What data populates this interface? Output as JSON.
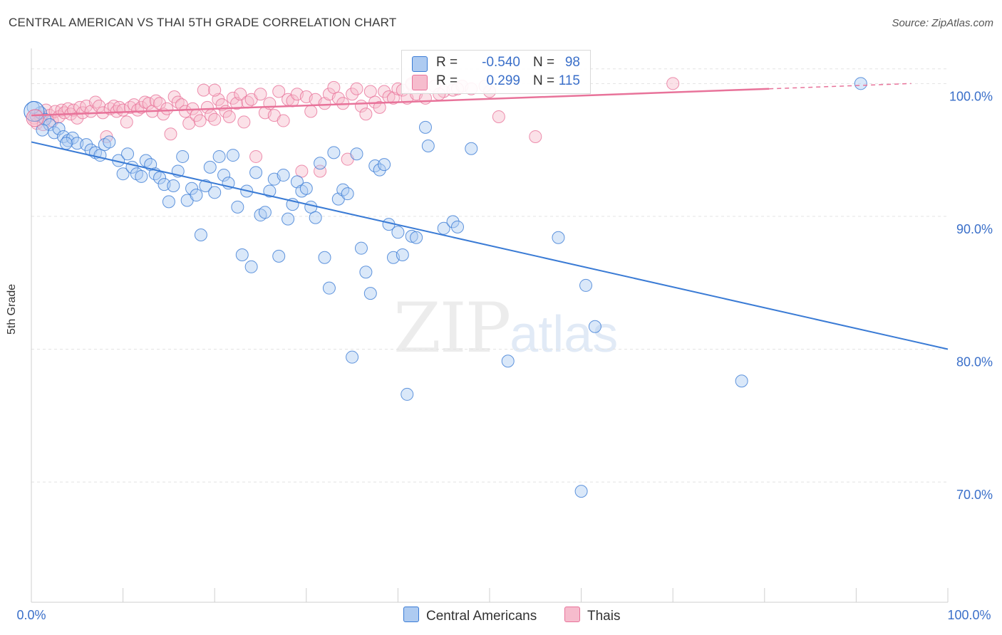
{
  "title": "CENTRAL AMERICAN VS THAI 5TH GRADE CORRELATION CHART",
  "source": "Source: ZipAtlas.com",
  "watermark": {
    "zip": "ZIP",
    "atlas": "atlas"
  },
  "colors": {
    "blue": "#3a7bd5",
    "blue_fill": "#aecbf1",
    "pink": "#e8739a",
    "pink_fill": "#f6bccd",
    "axis_text": "#3a6fc9",
    "grid": "#e3e3e3"
  },
  "legend": {
    "rows": [
      {
        "label": "R =",
        "r": "-0.540",
        "n_label": "N =",
        "n": "98",
        "series": "blue"
      },
      {
        "label": "R =",
        "r": "0.299",
        "n_label": "N =",
        "n": "115",
        "series": "pink"
      }
    ]
  },
  "bottom_legend": [
    {
      "name": "Central Americans",
      "series": "blue"
    },
    {
      "name": "Thais",
      "series": "pink"
    }
  ],
  "chart_data": {
    "type": "scatter",
    "title": "CENTRAL AMERICAN VS THAI 5TH GRADE CORRELATION CHART",
    "xlabel": "",
    "ylabel": "5th Grade",
    "xlim": [
      0,
      100
    ],
    "ylim": [
      61,
      102
    ],
    "x_tick_labels": [
      {
        "value": 0,
        "label": "0.0%"
      },
      {
        "value": 100,
        "label": "100.0%"
      }
    ],
    "y_tick_labels": [
      {
        "value": 100,
        "label": "100.0%"
      },
      {
        "value": 90,
        "label": "90.0%"
      },
      {
        "value": 80,
        "label": "80.0%"
      },
      {
        "value": 70,
        "label": "70.0%"
      }
    ],
    "grid": true,
    "legend_position": "top-center",
    "series": [
      {
        "name": "Central Americans",
        "color": "#3a7bd5",
        "r": -0.54,
        "n": 98,
        "trend": {
          "x": [
            0,
            100
          ],
          "y": [
            95.6,
            80.0
          ]
        },
        "points": [
          [
            0.5,
            97.6
          ],
          [
            1.0,
            97.8
          ],
          [
            1.5,
            97.3
          ],
          [
            2.0,
            96.9
          ],
          [
            2.5,
            96.3
          ],
          [
            3.0,
            96.6
          ],
          [
            3.5,
            96.0
          ],
          [
            4.0,
            95.7
          ],
          [
            4.5,
            95.9
          ],
          [
            5.0,
            95.5
          ],
          [
            6.0,
            95.4
          ],
          [
            6.5,
            95.0
          ],
          [
            7.0,
            94.8
          ],
          [
            7.5,
            94.6
          ],
          [
            8.0,
            95.4
          ],
          [
            8.5,
            95.6
          ],
          [
            9.5,
            94.2
          ],
          [
            10.0,
            93.2
          ],
          [
            10.5,
            94.7
          ],
          [
            11.0,
            93.7
          ],
          [
            11.5,
            93.2
          ],
          [
            12.0,
            93.0
          ],
          [
            12.5,
            94.2
          ],
          [
            13.0,
            93.9
          ],
          [
            13.5,
            93.2
          ],
          [
            14.0,
            92.9
          ],
          [
            14.5,
            92.4
          ],
          [
            15.0,
            91.1
          ],
          [
            15.5,
            92.3
          ],
          [
            16.0,
            93.4
          ],
          [
            16.5,
            94.5
          ],
          [
            17.0,
            91.2
          ],
          [
            17.5,
            92.1
          ],
          [
            18.0,
            91.6
          ],
          [
            18.5,
            88.6
          ],
          [
            19.0,
            92.3
          ],
          [
            19.5,
            93.7
          ],
          [
            20.0,
            91.8
          ],
          [
            20.5,
            94.5
          ],
          [
            21.0,
            93.1
          ],
          [
            21.5,
            92.5
          ],
          [
            22.0,
            94.6
          ],
          [
            22.5,
            90.7
          ],
          [
            23.0,
            87.1
          ],
          [
            23.5,
            91.9
          ],
          [
            24.0,
            86.2
          ],
          [
            24.5,
            93.3
          ],
          [
            25.0,
            90.1
          ],
          [
            25.5,
            90.3
          ],
          [
            26.0,
            91.9
          ],
          [
            26.5,
            92.8
          ],
          [
            27.0,
            87.0
          ],
          [
            27.5,
            93.1
          ],
          [
            28.0,
            89.8
          ],
          [
            28.5,
            90.9
          ],
          [
            29.0,
            92.6
          ],
          [
            29.5,
            91.9
          ],
          [
            30.0,
            92.1
          ],
          [
            30.5,
            90.7
          ],
          [
            31.0,
            89.9
          ],
          [
            31.5,
            94.0
          ],
          [
            32.0,
            86.9
          ],
          [
            32.5,
            84.6
          ],
          [
            33.0,
            94.8
          ],
          [
            33.5,
            91.3
          ],
          [
            34.0,
            92.0
          ],
          [
            34.5,
            91.7
          ],
          [
            35.0,
            79.4
          ],
          [
            35.5,
            94.7
          ],
          [
            36.0,
            87.6
          ],
          [
            36.5,
            85.8
          ],
          [
            37.0,
            84.2
          ],
          [
            37.5,
            93.8
          ],
          [
            38.0,
            93.5
          ],
          [
            38.5,
            93.9
          ],
          [
            39.0,
            89.4
          ],
          [
            39.5,
            86.9
          ],
          [
            40.0,
            88.8
          ],
          [
            40.5,
            87.1
          ],
          [
            41.0,
            76.6
          ],
          [
            41.5,
            88.5
          ],
          [
            42.0,
            88.4
          ],
          [
            43.0,
            96.7
          ],
          [
            43.3,
            95.3
          ],
          [
            45.0,
            89.1
          ],
          [
            46.0,
            89.6
          ],
          [
            46.5,
            89.2
          ],
          [
            48.0,
            95.1
          ],
          [
            52.0,
            79.1
          ],
          [
            57.5,
            88.4
          ],
          [
            60.0,
            69.3
          ],
          [
            60.5,
            84.8
          ],
          [
            61.5,
            81.7
          ],
          [
            77.5,
            77.6
          ],
          [
            90.5,
            100.0
          ],
          [
            1.2,
            96.5
          ],
          [
            3.8,
            95.5
          ],
          [
            0.2,
            98.2
          ]
        ]
      },
      {
        "name": "Thais",
        "color": "#e8739a",
        "r": 0.299,
        "n": 115,
        "trend": {
          "x": [
            0,
            80.5
          ],
          "y": [
            97.6,
            99.6
          ],
          "dashed_to": {
            "x": 96,
            "y": 100.0
          }
        },
        "points": [
          [
            0.3,
            97.4
          ],
          [
            0.6,
            97.0
          ],
          [
            1.0,
            97.5
          ],
          [
            1.3,
            96.9
          ],
          [
            1.6,
            98.0
          ],
          [
            2.0,
            97.6
          ],
          [
            2.3,
            97.2
          ],
          [
            2.6,
            97.9
          ],
          [
            3.0,
            97.5
          ],
          [
            3.3,
            98.0
          ],
          [
            3.6,
            97.8
          ],
          [
            4.0,
            98.1
          ],
          [
            4.3,
            97.7
          ],
          [
            4.6,
            98.0
          ],
          [
            5.0,
            97.4
          ],
          [
            5.3,
            98.2
          ],
          [
            5.6,
            97.8
          ],
          [
            6.0,
            98.3
          ],
          [
            6.5,
            97.9
          ],
          [
            7.0,
            98.6
          ],
          [
            7.4,
            98.3
          ],
          [
            7.8,
            97.8
          ],
          [
            8.2,
            96.0
          ],
          [
            8.6,
            98.1
          ],
          [
            9.0,
            98.3
          ],
          [
            9.3,
            97.9
          ],
          [
            9.6,
            98.2
          ],
          [
            10.0,
            98.0
          ],
          [
            10.4,
            97.1
          ],
          [
            10.8,
            98.2
          ],
          [
            11.2,
            98.4
          ],
          [
            11.6,
            98.0
          ],
          [
            12.0,
            98.2
          ],
          [
            12.4,
            98.6
          ],
          [
            12.8,
            98.5
          ],
          [
            13.2,
            97.9
          ],
          [
            13.6,
            98.7
          ],
          [
            14.0,
            98.5
          ],
          [
            14.4,
            97.7
          ],
          [
            14.8,
            98.1
          ],
          [
            15.2,
            96.2
          ],
          [
            15.6,
            99.0
          ],
          [
            16.0,
            98.6
          ],
          [
            16.4,
            98.4
          ],
          [
            16.8,
            97.9
          ],
          [
            17.2,
            97.0
          ],
          [
            17.6,
            98.1
          ],
          [
            18.0,
            97.6
          ],
          [
            18.4,
            97.2
          ],
          [
            18.8,
            99.5
          ],
          [
            19.2,
            98.2
          ],
          [
            19.6,
            97.6
          ],
          [
            20.0,
            97.3
          ],
          [
            20.4,
            98.8
          ],
          [
            20.8,
            98.4
          ],
          [
            21.2,
            97.9
          ],
          [
            21.6,
            97.5
          ],
          [
            22.0,
            98.9
          ],
          [
            22.4,
            98.5
          ],
          [
            22.8,
            99.2
          ],
          [
            23.2,
            97.1
          ],
          [
            23.6,
            98.6
          ],
          [
            24.0,
            98.8
          ],
          [
            24.5,
            94.5
          ],
          [
            25.0,
            99.2
          ],
          [
            25.5,
            97.8
          ],
          [
            26.0,
            98.5
          ],
          [
            26.5,
            97.6
          ],
          [
            27.0,
            99.4
          ],
          [
            27.5,
            97.2
          ],
          [
            28.0,
            98.8
          ],
          [
            28.5,
            98.7
          ],
          [
            29.0,
            99.2
          ],
          [
            29.5,
            93.4
          ],
          [
            30.0,
            99.0
          ],
          [
            30.5,
            97.9
          ],
          [
            31.0,
            98.8
          ],
          [
            31.5,
            93.4
          ],
          [
            32.0,
            98.5
          ],
          [
            32.5,
            99.2
          ],
          [
            33.0,
            99.7
          ],
          [
            33.5,
            98.9
          ],
          [
            34.0,
            98.5
          ],
          [
            34.5,
            94.3
          ],
          [
            35.0,
            99.2
          ],
          [
            35.5,
            99.6
          ],
          [
            36.0,
            98.3
          ],
          [
            36.5,
            97.7
          ],
          [
            37.0,
            99.4
          ],
          [
            37.5,
            98.6
          ],
          [
            38.0,
            98.2
          ],
          [
            38.5,
            99.4
          ],
          [
            39.0,
            99.0
          ],
          [
            39.5,
            98.9
          ],
          [
            40.0,
            99.6
          ],
          [
            40.5,
            99.5
          ],
          [
            41.0,
            98.9
          ],
          [
            41.5,
            99.9
          ],
          [
            42.0,
            99.2
          ],
          [
            42.5,
            99.7
          ],
          [
            43.0,
            98.9
          ],
          [
            44.0,
            99.8
          ],
          [
            45.0,
            99.4
          ],
          [
            46.0,
            99.5
          ],
          [
            47.0,
            99.8
          ],
          [
            48.0,
            99.6
          ],
          [
            50.0,
            99.4
          ],
          [
            51.0,
            97.5
          ],
          [
            55.0,
            96.0
          ],
          [
            70.0,
            100.0
          ],
          [
            44.5,
            99.2
          ],
          [
            46.5,
            99.6
          ],
          [
            49.5,
            99.8
          ],
          [
            20.0,
            99.5
          ],
          [
            41.5,
            100.0
          ]
        ]
      }
    ]
  }
}
